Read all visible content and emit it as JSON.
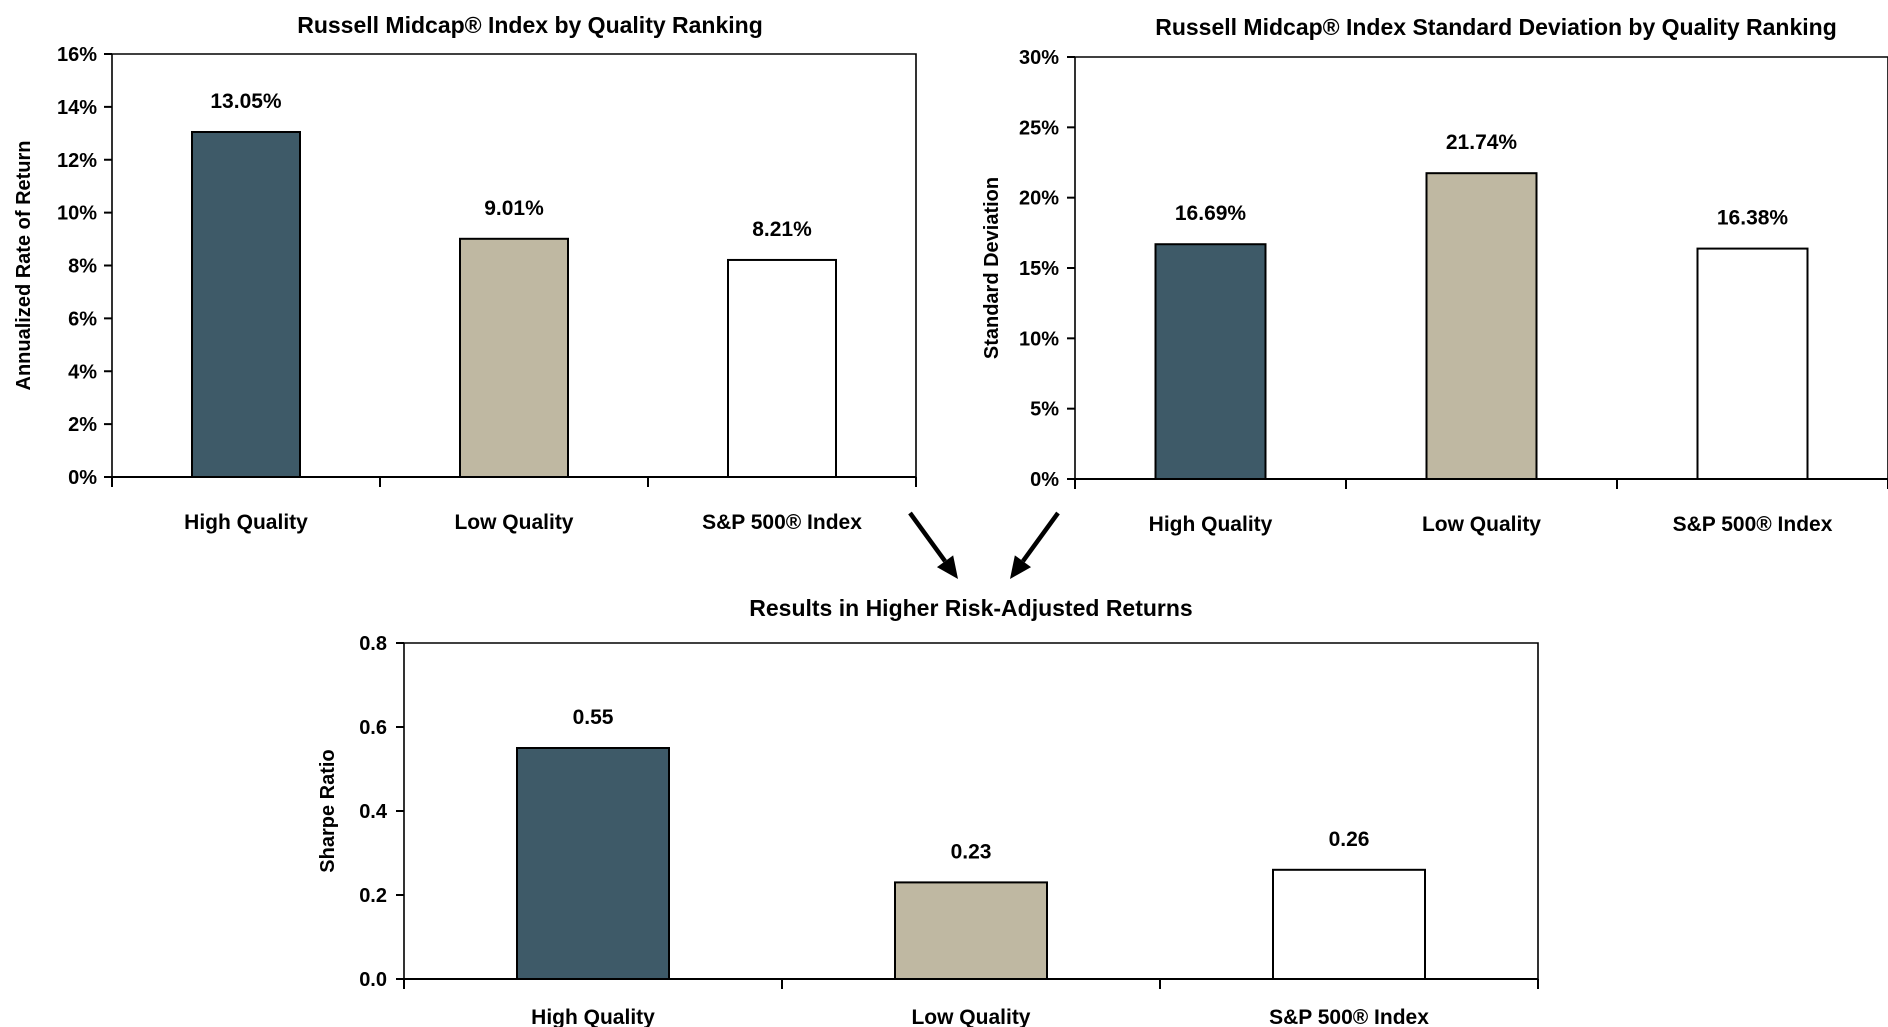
{
  "colors": {
    "high_quality": "#3e5a68",
    "low_quality": "#bfb8a2",
    "sp500": "#ffffff",
    "axis": "#000000",
    "arrow": "#000000"
  },
  "chart_data": [
    {
      "type": "bar",
      "title": "Russell Midcap® Index by Quality Ranking",
      "xlabel": "",
      "ylabel": "Annualized Rate of Return",
      "categories": [
        "High Quality",
        "Low Quality",
        "S&P 500® Index"
      ],
      "values": [
        13.05,
        9.01,
        8.21
      ],
      "value_labels": [
        "13.05%",
        "9.01%",
        "8.21%"
      ],
      "ylim": [
        0,
        16
      ],
      "yticks": [
        0,
        2,
        4,
        6,
        8,
        10,
        12,
        14,
        16
      ],
      "ytick_labels": [
        "0%",
        "2%",
        "4%",
        "6%",
        "8%",
        "10%",
        "12%",
        "14%",
        "16%"
      ],
      "grid": false,
      "legend": "none"
    },
    {
      "type": "bar",
      "title": "Russell Midcap® Index Standard Deviation by Quality Ranking",
      "xlabel": "",
      "ylabel": "Standard Deviation",
      "categories": [
        "High Quality",
        "Low Quality",
        "S&P 500® Index"
      ],
      "values": [
        16.69,
        21.74,
        16.38
      ],
      "value_labels": [
        "16.69%",
        "21.74%",
        "16.38%"
      ],
      "ylim": [
        0,
        30
      ],
      "yticks": [
        0,
        5,
        10,
        15,
        20,
        25,
        30
      ],
      "ytick_labels": [
        "0%",
        "5%",
        "10%",
        "15%",
        "20%",
        "25%",
        "30%"
      ],
      "grid": false,
      "legend": "none"
    },
    {
      "type": "bar",
      "title": "Results in Higher Risk-Adjusted Returns",
      "xlabel": "",
      "ylabel": "Sharpe Ratio",
      "categories": [
        "High Quality",
        "Low Quality",
        "S&P 500® Index"
      ],
      "values": [
        0.55,
        0.23,
        0.26
      ],
      "value_labels": [
        "0.55",
        "0.23",
        "0.26"
      ],
      "ylim": [
        0,
        0.8
      ],
      "yticks": [
        0,
        0.2,
        0.4,
        0.6,
        0.8
      ],
      "ytick_labels": [
        "0.0",
        "0.2",
        "0.4",
        "0.6",
        "0.8"
      ],
      "grid": false,
      "legend": "none"
    }
  ]
}
